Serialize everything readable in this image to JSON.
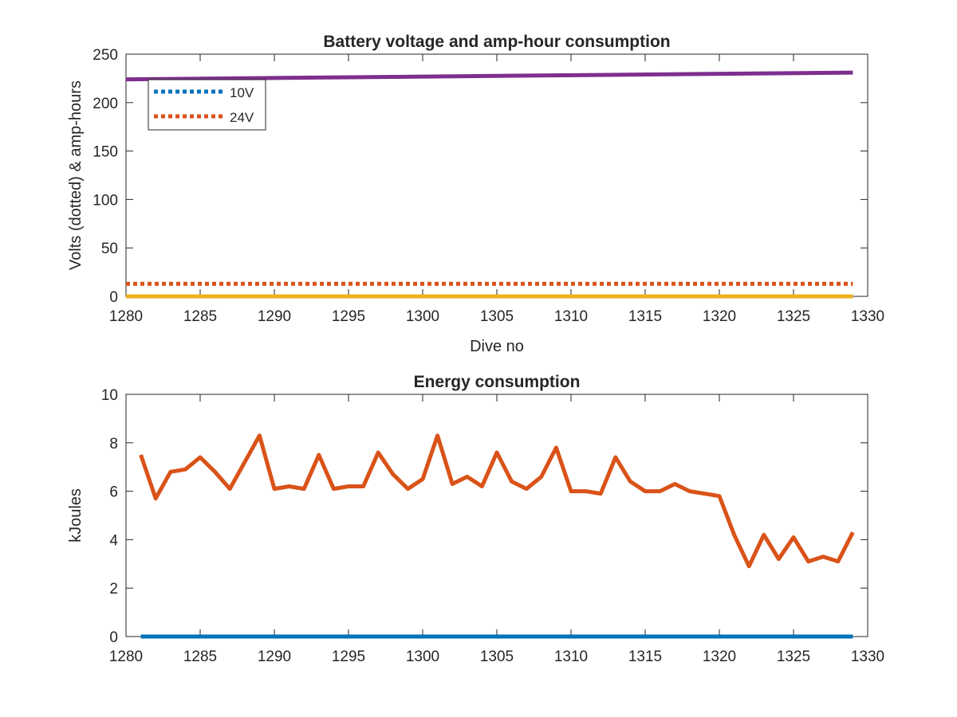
{
  "chart_data": [
    {
      "type": "line",
      "title": "Battery voltage and amp-hour consumption",
      "xlabel": "Dive no",
      "ylabel": "Volts (dotted) & amp-hours",
      "xlim": [
        1280,
        1330
      ],
      "ylim": [
        0,
        250
      ],
      "xticks": [
        1280,
        1285,
        1290,
        1295,
        1300,
        1305,
        1310,
        1315,
        1320,
        1325,
        1330
      ],
      "yticks": [
        0,
        50,
        100,
        150,
        200,
        250
      ],
      "grid": false,
      "legend_position": "top-left",
      "series": [
        {
          "name": "10V",
          "style": "dotted",
          "color": "#0072BD",
          "x": [
            1280,
            1329
          ],
          "y": [
            0,
            0
          ]
        },
        {
          "name": "24V",
          "style": "dotted",
          "color": "#D95319",
          "x": [
            1280,
            1329
          ],
          "y": [
            13,
            13
          ]
        },
        {
          "style": "solid",
          "color": "#EDB120",
          "x": [
            1280,
            1329
          ],
          "y": [
            0,
            0
          ]
        },
        {
          "style": "solid",
          "color": "#7E2F8E",
          "x": [
            1280,
            1329
          ],
          "y": [
            224,
            231
          ]
        }
      ]
    },
    {
      "type": "line",
      "title": "Energy consumption",
      "xlabel": "",
      "ylabel": "kJoules",
      "xlim": [
        1280,
        1330
      ],
      "ylim": [
        0,
        10
      ],
      "xticks": [
        1280,
        1285,
        1290,
        1295,
        1300,
        1305,
        1310,
        1315,
        1320,
        1325,
        1330
      ],
      "yticks": [
        0,
        2,
        4,
        6,
        8,
        10
      ],
      "grid": false,
      "series": [
        {
          "style": "solid",
          "color": "#D95319",
          "x": [
            1281,
            1282,
            1283,
            1284,
            1285,
            1286,
            1287,
            1288,
            1289,
            1290,
            1291,
            1292,
            1293,
            1294,
            1295,
            1296,
            1297,
            1298,
            1299,
            1300,
            1301,
            1302,
            1303,
            1304,
            1305,
            1306,
            1307,
            1308,
            1309,
            1310,
            1311,
            1312,
            1313,
            1314,
            1315,
            1316,
            1317,
            1318,
            1319,
            1320,
            1321,
            1322,
            1323,
            1324,
            1325,
            1326,
            1327,
            1328,
            1329
          ],
          "y": [
            7.5,
            5.7,
            6.8,
            6.9,
            7.4,
            6.8,
            6.1,
            7.2,
            8.3,
            6.1,
            6.2,
            6.1,
            7.5,
            6.1,
            6.2,
            6.2,
            7.6,
            6.7,
            6.1,
            6.5,
            8.3,
            6.3,
            6.6,
            6.2,
            7.6,
            6.4,
            6.1,
            6.6,
            7.8,
            6.0,
            6.0,
            5.9,
            7.4,
            6.4,
            6.0,
            6.0,
            6.3,
            6.0,
            5.9,
            5.8,
            4.2,
            2.9,
            4.2,
            3.2,
            4.1,
            3.1,
            3.3,
            3.1,
            4.3
          ]
        },
        {
          "style": "solid",
          "color": "#0072BD",
          "x": [
            1281,
            1329
          ],
          "y": [
            0,
            0
          ]
        }
      ]
    }
  ]
}
